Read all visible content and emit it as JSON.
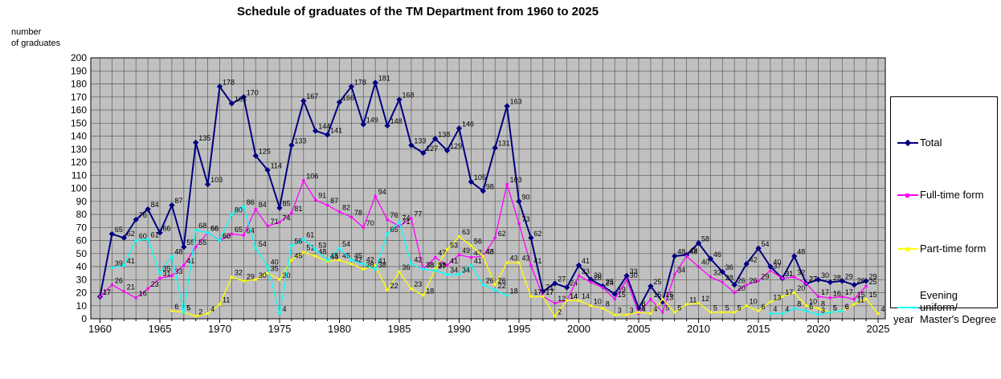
{
  "title": "Schedule of graduates of the TM Department from 1960 to 2025",
  "y_axis_title": "number\nof graduates",
  "x_axis_title": "year",
  "legend": {
    "items": [
      {
        "label": "Total",
        "color": "#000080",
        "marker": "diamond"
      },
      {
        "label": "Full-time form",
        "color": "#FF00FF",
        "marker": "square"
      },
      {
        "label": "Part-time form",
        "color": "#FFFF00",
        "marker": "triangle"
      },
      {
        "label": "Evening uniform/\nMaster's Degree",
        "color": "#00FFFF",
        "marker": "dash"
      }
    ]
  },
  "chart_data": {
    "type": "line",
    "title": "Schedule of graduates of the TM Department from 1960 to 2025",
    "xlabel": "year",
    "ylabel": "number of graduates",
    "xlim": [
      1960,
      2025
    ],
    "ylim": [
      0,
      200
    ],
    "y_tick_step": 10,
    "x_tick_labels": [
      1960,
      1965,
      1970,
      1975,
      1980,
      1985,
      1990,
      1995,
      2000,
      2005,
      2010,
      2015,
      2020,
      2025
    ],
    "y_tick_labels": [
      0,
      10,
      20,
      30,
      40,
      50,
      60,
      70,
      80,
      90,
      100,
      110,
      120,
      130,
      140,
      150,
      160,
      170,
      180,
      190,
      200
    ],
    "grid": true,
    "plot_background": "#c0c0c0",
    "legend_position": "right",
    "series": [
      {
        "name": "Total",
        "color": "#000080",
        "start_year": 1960,
        "values": [
          17,
          65,
          62,
          76,
          84,
          66,
          87,
          55,
          135,
          103,
          178,
          165,
          170,
          125,
          114,
          85,
          133,
          167,
          144,
          141,
          166,
          178,
          149,
          181,
          148,
          168,
          133,
          127,
          138,
          129,
          146,
          105,
          98,
          131,
          163,
          90,
          62,
          21,
          27,
          24,
          41,
          30,
          25,
          19,
          33,
          8,
          25,
          13,
          48,
          49,
          58,
          46,
          36,
          26,
          42,
          54,
          40,
          31,
          48,
          27,
          30,
          28,
          29,
          26,
          29
        ]
      },
      {
        "name": "Full-time form",
        "color": "#FF00FF",
        "start_year": 1960,
        "values": [
          17,
          26,
          21,
          16,
          23,
          31,
          33,
          41,
          55,
          66,
          60,
          65,
          64,
          84,
          71,
          74,
          81,
          106,
          91,
          87,
          82,
          78,
          70,
          94,
          76,
          71,
          77,
          38,
          47,
          41,
          49,
          47,
          48,
          62,
          103,
          73,
          41,
          17,
          12,
          14,
          33,
          28,
          24,
          15,
          30,
          4,
          15,
          5,
          34,
          48,
          40,
          32,
          28,
          20,
          26,
          29,
          37,
          31,
          32,
          27,
          17,
          16,
          17,
          15,
          25
        ]
      },
      {
        "name": "Part-time form",
        "color": "#FFFF00",
        "start_year": 1966,
        "values": [
          6,
          5,
          2,
          4,
          11,
          32,
          29,
          30,
          35,
          30,
          45,
          51,
          48,
          44,
          45,
          42,
          38,
          41,
          22,
          36,
          23,
          18,
          38,
          53,
          63,
          56,
          48,
          26,
          43,
          43,
          17,
          17,
          2,
          14,
          14,
          10,
          8,
          3,
          3,
          5,
          4,
          15,
          5,
          11,
          12,
          5,
          5,
          5,
          10,
          6,
          13,
          17,
          20,
          10,
          8,
          5,
          6,
          11,
          15,
          4
        ]
      },
      {
        "name": "Evening uniform/Master's Degree",
        "color": "#00FFFF",
        "start_year": 1961,
        "values": [
          39,
          41,
          60,
          61,
          35,
          48,
          5,
          68,
          66,
          60,
          80,
          86,
          54,
          40,
          4,
          56,
          61,
          53,
          45,
          54,
          45,
          42,
          38,
          65,
          74,
          42,
          38,
          37,
          34,
          34,
          41,
          26,
          22,
          18,
          null,
          null,
          null,
          null,
          null,
          null,
          null,
          null,
          null,
          null,
          null,
          null,
          null,
          null,
          null,
          null,
          null,
          null,
          null,
          null,
          null,
          4,
          4,
          8,
          6,
          3,
          5,
          6
        ]
      }
    ]
  }
}
